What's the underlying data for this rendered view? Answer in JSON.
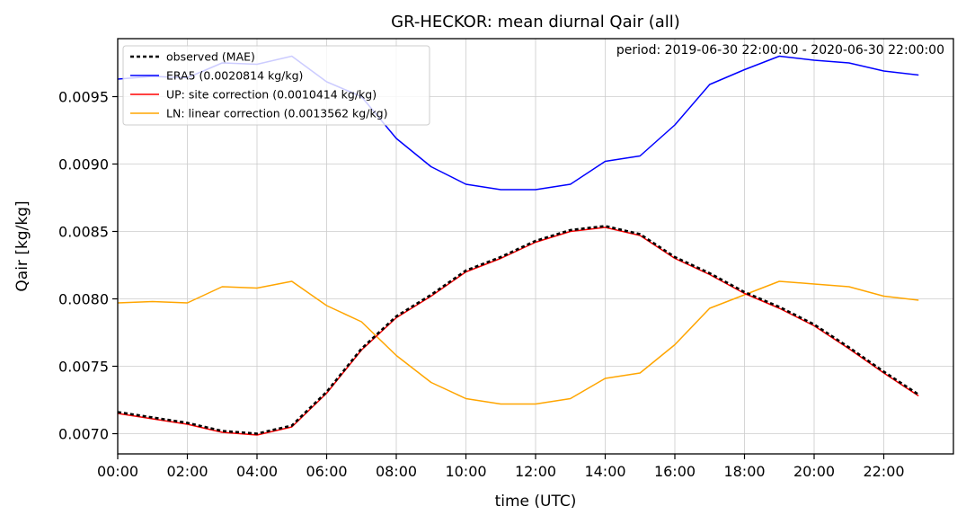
{
  "chart_data": {
    "type": "line",
    "title": "GR-HECKOR: mean diurnal Qair (all)",
    "xlabel": "time (UTC)",
    "ylabel": "Qair [kg/kg]",
    "annotation": "period: 2019-06-30 22:00:00 - 2020-06-30 22:00:00",
    "x": [
      0,
      1,
      2,
      3,
      4,
      5,
      6,
      7,
      8,
      9,
      10,
      11,
      12,
      13,
      14,
      15,
      16,
      17,
      18,
      19,
      20,
      21,
      22,
      23
    ],
    "xlim": [
      0,
      24
    ],
    "ylim": [
      0.00685,
      0.00993
    ],
    "xticks": [
      0,
      2,
      4,
      6,
      8,
      10,
      12,
      14,
      16,
      18,
      20,
      22
    ],
    "xtick_labels": [
      "00:00",
      "02:00",
      "04:00",
      "06:00",
      "08:00",
      "10:00",
      "12:00",
      "14:00",
      "16:00",
      "18:00",
      "20:00",
      "22:00"
    ],
    "yticks": [
      0.007,
      0.0075,
      0.008,
      0.0085,
      0.009,
      0.0095
    ],
    "ytick_labels": [
      "0.0070",
      "0.0075",
      "0.0080",
      "0.0085",
      "0.0090",
      "0.0095"
    ],
    "grid": true,
    "legend_position": "upper-left",
    "series": [
      {
        "name": "observed (MAE)",
        "color": "#000000",
        "dashed": true,
        "values": [
          0.00716,
          0.00712,
          0.00708,
          0.00702,
          0.007,
          0.00706,
          0.00731,
          0.00763,
          0.00787,
          0.00803,
          0.00821,
          0.00831,
          0.00843,
          0.00851,
          0.00854,
          0.00848,
          0.00831,
          0.00819,
          0.00805,
          0.00794,
          0.00781,
          0.00764,
          0.00746,
          0.00729
        ]
      },
      {
        "name": "ERA5 (0.0020814 kg/kg)",
        "color": "#0000ff",
        "dashed": false,
        "values": [
          0.00963,
          0.00965,
          0.00964,
          0.00975,
          0.00974,
          0.0098,
          0.00961,
          0.0095,
          0.00919,
          0.00898,
          0.00885,
          0.00881,
          0.00881,
          0.00885,
          0.00902,
          0.00906,
          0.00929,
          0.00959,
          0.0097,
          0.0098,
          0.00977,
          0.00975,
          0.00969,
          0.00966
        ]
      },
      {
        "name": "UP: site correction (0.0010414 kg/kg)",
        "color": "#ff0000",
        "dashed": false,
        "values": [
          0.00715,
          0.00711,
          0.00707,
          0.00701,
          0.00699,
          0.00705,
          0.0073,
          0.00762,
          0.00786,
          0.00802,
          0.0082,
          0.0083,
          0.00842,
          0.0085,
          0.00853,
          0.00847,
          0.0083,
          0.00818,
          0.00804,
          0.00793,
          0.0078,
          0.00763,
          0.00745,
          0.00728
        ]
      },
      {
        "name": "LN: linear correction (0.0013562 kg/kg)",
        "color": "#ffa500",
        "dashed": false,
        "values": [
          0.00797,
          0.00798,
          0.00797,
          0.00809,
          0.00808,
          0.00813,
          0.00795,
          0.00783,
          0.00758,
          0.00738,
          0.00726,
          0.00722,
          0.00722,
          0.00726,
          0.00741,
          0.00745,
          0.00766,
          0.00793,
          0.00803,
          0.00813,
          0.00811,
          0.00809,
          0.00802,
          0.00799
        ]
      }
    ]
  }
}
